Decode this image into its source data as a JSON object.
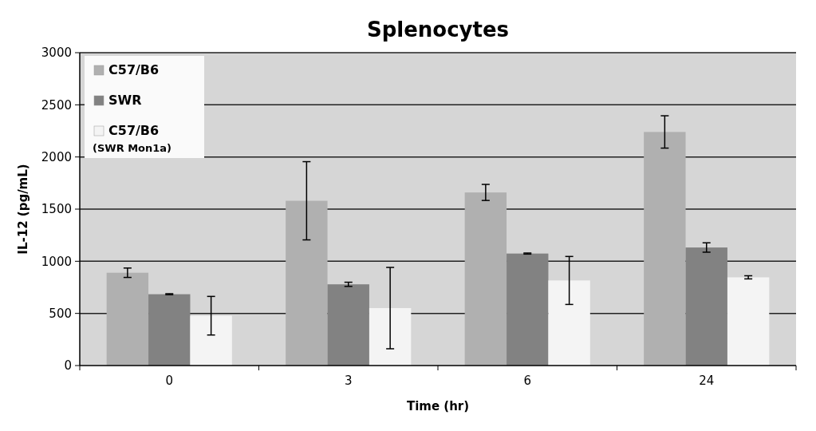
{
  "chart_data": {
    "type": "bar",
    "title": "Splenocytes",
    "xlabel": "Time (hr)",
    "ylabel": "IL-12 (pg/mL)",
    "categories": [
      "0",
      "3",
      "6",
      "24"
    ],
    "series": [
      {
        "name": "C57/B6",
        "color": "#b0b0b0",
        "values": [
          890,
          1580,
          1660,
          2240
        ],
        "errors": [
          45,
          375,
          77,
          155
        ]
      },
      {
        "name": "SWR",
        "color": "#828282",
        "values": [
          684,
          779,
          1074,
          1132
        ],
        "errors": [
          5,
          20,
          5,
          45
        ]
      },
      {
        "name": "C57/B6 (SWR Mon1a)",
        "color": "#f4f4f4",
        "values": [
          478,
          551,
          816,
          846
        ],
        "errors": [
          185,
          390,
          230,
          15
        ]
      }
    ],
    "ylim": [
      0,
      3000
    ],
    "yticks": [
      0,
      500,
      1000,
      1500,
      2000,
      2500,
      3000
    ],
    "grid": "y",
    "legend": "top left"
  }
}
